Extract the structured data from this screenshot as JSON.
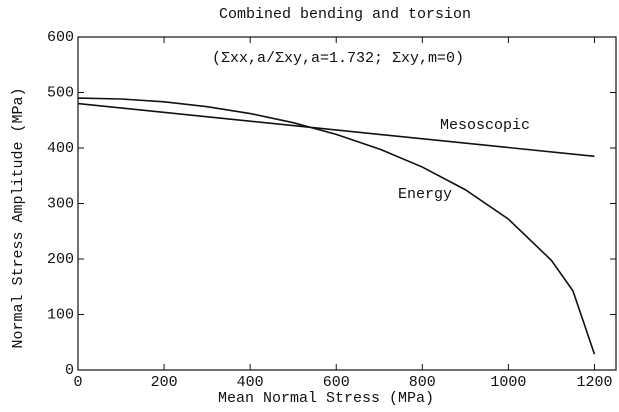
{
  "chart_data": {
    "type": "line",
    "title": "Combined bending and torsion",
    "annotation": "(Σxx,a/Σxy,a=1.732; Σxy,m=0)",
    "x_label": "Mean Normal Stress (MPa)",
    "y_label": "Normal Stress Amplitude (MPa)",
    "series": [
      {
        "name": "Mesoscopic",
        "color": "#111111",
        "x": [
          0,
          1200
        ],
        "values": [
          480,
          385
        ]
      },
      {
        "name": "Energy",
        "color": "#111111",
        "x": [
          0,
          100,
          200,
          300,
          400,
          500,
          600,
          700,
          800,
          900,
          1000,
          1100,
          1150,
          1200
        ],
        "values": [
          490,
          488.3,
          483.2,
          474.5,
          462.1,
          445.6,
          424.6,
          398.3,
          365.7,
          324.8,
          271.9,
          197.5,
          142.6,
          28.3
        ]
      }
    ],
    "xlim": [
      0,
      1250
    ],
    "xticks": [
      0,
      200,
      400,
      600,
      800,
      1000,
      1200
    ],
    "ylim": [
      0,
      600
    ],
    "yticks": [
      0,
      100,
      200,
      300,
      400,
      500,
      600
    ],
    "grid": false
  }
}
